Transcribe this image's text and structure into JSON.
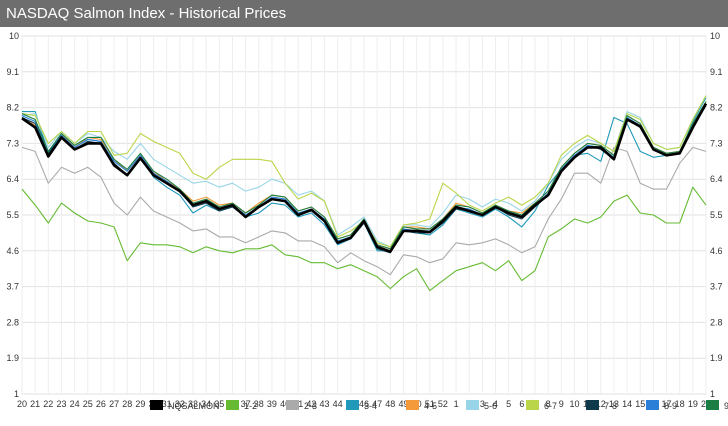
{
  "window": {
    "title": "NASDAQ Salmon Index - Historical Prices"
  },
  "chart_data": {
    "type": "line",
    "title": "NASDAQ Salmon Index - Historical Prices",
    "xlabel": "",
    "ylabel": "",
    "ylim": [
      1,
      10
    ],
    "yticks": [
      1,
      1.9,
      2.8,
      3.7,
      4.6,
      5.5,
      6.4,
      7.3,
      8.2,
      9.1,
      10
    ],
    "ytick_labels": [
      "1",
      "1.9",
      "2.8",
      "3.7",
      "4.6",
      "5.5",
      "6.4",
      "7.3",
      "8.2",
      "9.1",
      "10"
    ],
    "grid": true,
    "legend_position": "bottom",
    "x": [
      "20",
      "21",
      "22",
      "23",
      "24",
      "25",
      "26",
      "27",
      "28",
      "29",
      "30",
      "31",
      "32",
      "33",
      "34",
      "35",
      "36",
      "37",
      "38",
      "39",
      "40",
      "41",
      "42",
      "43",
      "44",
      "45",
      "46",
      "47",
      "48",
      "49",
      "50",
      "51",
      "52",
      "1",
      "2",
      "3",
      "4",
      "5",
      "6",
      "7",
      "8",
      "9",
      "10",
      "11",
      "12",
      "13",
      "14",
      "15",
      "16",
      "17",
      "18",
      "19",
      "20"
    ],
    "series": [
      {
        "name": "NQSALMON",
        "color": "#000000",
        "values": [
          7.93,
          7.7,
          6.97,
          7.45,
          7.15,
          7.3,
          7.3,
          6.75,
          6.5,
          6.93,
          6.5,
          6.3,
          6.1,
          5.75,
          5.85,
          5.65,
          5.75,
          5.45,
          5.7,
          5.9,
          5.85,
          5.5,
          5.63,
          5.35,
          4.8,
          4.93,
          5.35,
          4.7,
          4.58,
          5.1,
          5.1,
          5.07,
          5.35,
          5.7,
          5.6,
          5.5,
          5.7,
          5.55,
          5.45,
          5.75,
          6.0,
          6.6,
          6.95,
          7.2,
          7.2,
          6.9,
          7.9,
          7.73,
          7.15,
          7.0,
          7.05,
          7.7,
          8.3
        ]
      },
      {
        "name": "1-2",
        "color": "#66bb33",
        "values": [
          6.15,
          5.75,
          5.3,
          5.8,
          5.55,
          5.35,
          5.3,
          5.2,
          4.35,
          4.8,
          4.75,
          4.75,
          4.7,
          4.55,
          4.7,
          4.6,
          4.55,
          4.65,
          4.65,
          4.75,
          4.5,
          4.45,
          4.3,
          4.3,
          4.15,
          4.25,
          4.1,
          3.95,
          3.65,
          3.95,
          4.15,
          3.6,
          3.85,
          4.1,
          4.2,
          4.3,
          4.1,
          4.35,
          3.85,
          4.1,
          4.95,
          5.15,
          5.4,
          5.3,
          5.45,
          5.85,
          6.0,
          5.55,
          5.5,
          5.3,
          5.3,
          6.2,
          5.75
        ]
      },
      {
        "name": "2-3",
        "color": "#aaaaaa",
        "values": [
          7.2,
          7.1,
          6.3,
          6.7,
          6.55,
          6.7,
          6.45,
          5.8,
          5.5,
          5.95,
          5.6,
          5.45,
          5.3,
          5.1,
          5.15,
          4.95,
          4.95,
          4.8,
          4.95,
          5.1,
          5.05,
          4.85,
          4.85,
          4.7,
          4.3,
          4.55,
          4.35,
          4.2,
          4.0,
          4.5,
          4.45,
          4.3,
          4.4,
          4.8,
          4.75,
          4.8,
          4.9,
          4.75,
          4.55,
          4.7,
          5.4,
          5.9,
          6.55,
          6.55,
          6.3,
          7.2,
          7.1,
          6.3,
          6.15,
          6.15,
          6.8,
          7.2,
          7.1
        ]
      },
      {
        "name": "3-4",
        "color": "#2199bb",
        "values": [
          8.1,
          8.1,
          7.05,
          7.5,
          7.2,
          7.4,
          7.35,
          6.85,
          6.6,
          7.0,
          6.45,
          6.2,
          6.0,
          5.55,
          5.75,
          5.6,
          5.7,
          5.45,
          5.55,
          5.8,
          5.75,
          5.45,
          5.55,
          5.25,
          4.75,
          4.9,
          5.3,
          4.6,
          4.6,
          5.1,
          5.05,
          5.0,
          5.25,
          5.65,
          5.55,
          5.45,
          5.65,
          5.45,
          5.2,
          5.6,
          6.25,
          6.65,
          7.0,
          7.05,
          6.85,
          7.95,
          7.8,
          7.1,
          6.95,
          7.0,
          7.05,
          7.85,
          8.45
        ]
      },
      {
        "name": "4-5",
        "color": "#f59a3a",
        "values": [
          7.95,
          7.75,
          7.0,
          7.55,
          7.2,
          7.45,
          7.4,
          6.9,
          6.6,
          7.0,
          6.6,
          6.35,
          6.15,
          5.85,
          5.95,
          5.75,
          5.8,
          5.55,
          5.8,
          6.0,
          5.95,
          5.6,
          5.7,
          5.45,
          4.9,
          5.0,
          5.4,
          4.75,
          4.65,
          5.2,
          5.2,
          5.15,
          5.4,
          5.8,
          5.7,
          5.55,
          5.75,
          5.6,
          5.55,
          5.8,
          6.1,
          6.7,
          7.05,
          7.3,
          7.25,
          7.0,
          8.0,
          7.8,
          7.2,
          7.05,
          7.1,
          7.75,
          8.35
        ]
      },
      {
        "name": "5-6",
        "color": "#99d5e8",
        "values": [
          8.0,
          8.05,
          7.2,
          7.6,
          7.3,
          7.55,
          7.45,
          7.1,
          6.9,
          7.3,
          6.9,
          6.7,
          6.5,
          6.3,
          6.35,
          6.2,
          6.3,
          6.1,
          6.2,
          6.4,
          6.3,
          6.0,
          6.1,
          5.85,
          5.0,
          5.2,
          5.45,
          4.85,
          4.7,
          5.25,
          5.25,
          5.2,
          5.55,
          6.0,
          5.9,
          5.7,
          5.9,
          5.8,
          5.6,
          5.85,
          6.3,
          6.9,
          7.2,
          7.4,
          7.3,
          7.1,
          8.1,
          7.95,
          7.3,
          7.15,
          7.2,
          7.9,
          8.5
        ]
      },
      {
        "name": "6-7",
        "color": "#bbd54a",
        "values": [
          8.05,
          8.0,
          7.3,
          7.6,
          7.3,
          7.6,
          7.6,
          7.0,
          7.05,
          7.55,
          7.35,
          7.2,
          7.05,
          6.55,
          6.4,
          6.7,
          6.9,
          6.9,
          6.9,
          6.85,
          6.3,
          5.9,
          6.05,
          5.85,
          4.95,
          5.1,
          5.35,
          4.8,
          4.7,
          5.25,
          5.3,
          5.4,
          6.3,
          6.05,
          5.75,
          5.6,
          5.8,
          5.95,
          5.75,
          5.95,
          6.3,
          7.0,
          7.3,
          7.5,
          7.3,
          7.1,
          8.05,
          7.9,
          7.3,
          7.15,
          7.2,
          7.9,
          8.5
        ]
      },
      {
        "name": "7-8",
        "color": "#0e3a4c",
        "values": [
          7.95,
          7.8,
          7.05,
          7.5,
          7.15,
          7.35,
          7.3,
          6.8,
          6.5,
          6.95,
          6.5,
          6.3,
          6.1,
          5.7,
          5.8,
          5.6,
          5.7,
          5.45,
          5.7,
          5.9,
          5.85,
          5.5,
          5.6,
          5.35,
          4.8,
          4.9,
          5.3,
          4.65,
          4.55,
          5.1,
          5.05,
          5.05,
          5.3,
          5.65,
          5.6,
          5.5,
          5.7,
          5.5,
          5.4,
          5.7,
          6.0,
          6.6,
          6.95,
          7.25,
          7.15,
          6.9,
          7.9,
          7.7,
          7.15,
          7.0,
          7.05,
          7.7,
          8.25
        ]
      },
      {
        "name": "8-9",
        "color": "#2b7fd6",
        "values": [
          8.0,
          7.85,
          7.1,
          7.5,
          7.2,
          7.4,
          7.35,
          6.85,
          6.6,
          7.0,
          6.55,
          6.35,
          6.1,
          5.75,
          5.85,
          5.65,
          5.75,
          5.5,
          5.7,
          5.95,
          5.9,
          5.55,
          5.65,
          5.4,
          4.85,
          4.95,
          5.35,
          4.7,
          4.6,
          5.15,
          5.1,
          5.1,
          5.35,
          5.7,
          5.65,
          5.5,
          5.7,
          5.55,
          5.45,
          5.75,
          6.05,
          6.65,
          7.0,
          7.25,
          7.2,
          6.95,
          7.95,
          7.75,
          7.15,
          7.0,
          7.05,
          7.75,
          8.3
        ]
      },
      {
        "name": "9+",
        "color": "#1b7f45",
        "values": [
          8.05,
          7.9,
          7.1,
          7.55,
          7.25,
          7.45,
          7.45,
          6.9,
          6.65,
          7.05,
          6.6,
          6.4,
          6.15,
          5.8,
          5.9,
          5.7,
          5.8,
          5.55,
          5.75,
          6.0,
          5.95,
          5.6,
          5.7,
          5.45,
          4.9,
          5.0,
          5.4,
          4.75,
          4.65,
          5.2,
          5.15,
          5.15,
          5.4,
          5.75,
          5.7,
          5.55,
          5.75,
          5.6,
          5.5,
          5.8,
          6.1,
          6.7,
          7.05,
          7.3,
          7.25,
          7.0,
          8.0,
          7.8,
          7.2,
          7.05,
          7.1,
          7.8,
          8.35
        ]
      }
    ]
  }
}
